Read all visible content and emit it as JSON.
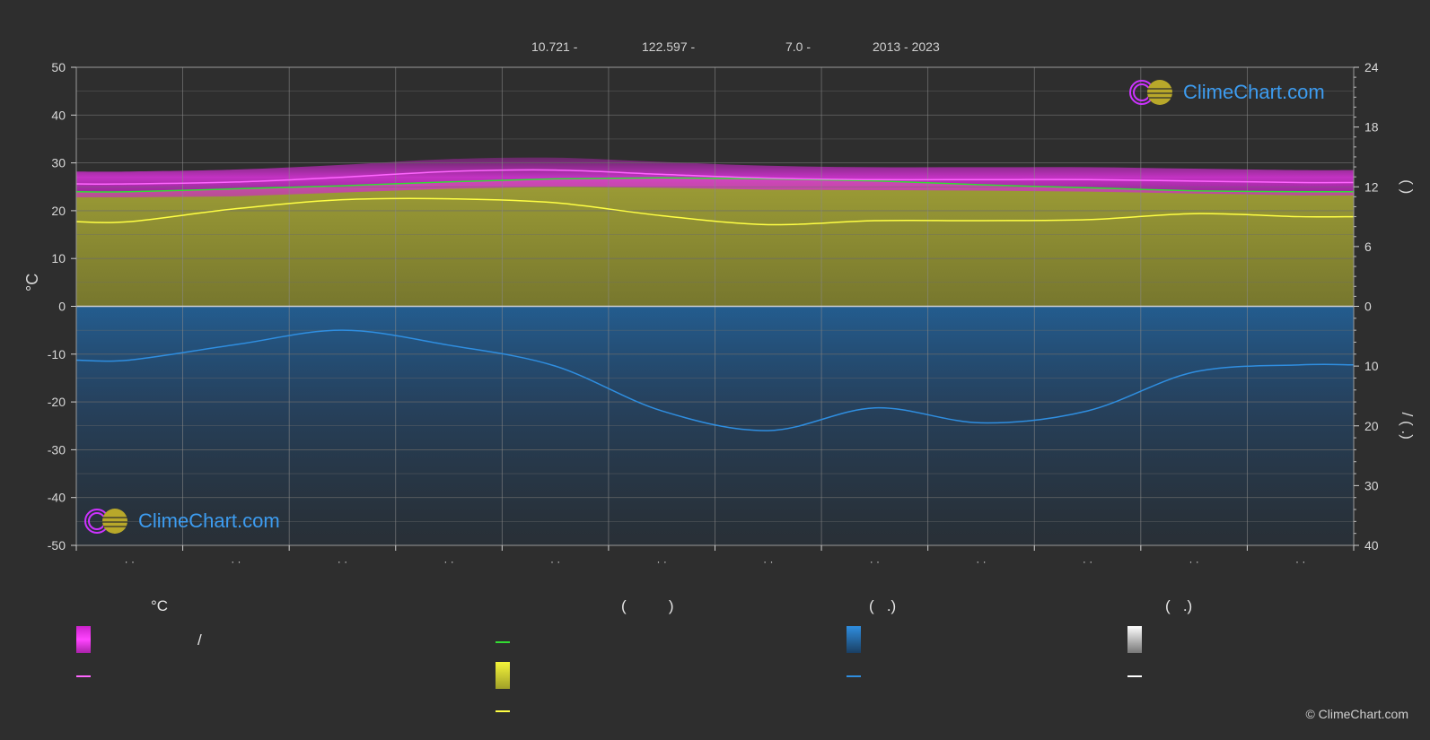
{
  "header": {
    "lat": "10.721 -",
    "lon": "122.597 -",
    "elev": "7.0 -",
    "years": "2013 - 2023"
  },
  "logo_text": "ClimeChart.com",
  "copyright": "© ClimeChart.com",
  "chart_data": {
    "type": "area",
    "title": "",
    "ylabel_left": "°C",
    "ylabel_right_top": "(      )",
    "ylabel_right_bottom": "/   (  .)",
    "y_left_ticks": [
      "50",
      "40",
      "30",
      "20",
      "10",
      "0",
      "-10",
      "-20",
      "-30",
      "-40",
      "-50"
    ],
    "y_right_top_ticks": [
      "24",
      "18",
      "12",
      "6",
      "0"
    ],
    "y_right_bottom_ticks": [
      "10",
      "20",
      "30",
      "40"
    ],
    "x_tick_labels": [
      "· ·",
      "· ·",
      "· ·",
      "· ·",
      "· ·",
      "· ·",
      "· ·",
      "· ·",
      "· ·",
      "· ·",
      "· ·",
      "· ·"
    ],
    "ylim_left": [
      -50,
      50
    ],
    "ylim_right_top": [
      0,
      24
    ],
    "ylim_right_bottom": [
      0,
      40
    ],
    "grid": true,
    "months": [
      1,
      2,
      3,
      4,
      5,
      6,
      7,
      8,
      9,
      10,
      11,
      12
    ],
    "series": [
      {
        "key": "max_temp",
        "color": "#ff66ff",
        "values": [
          25.6,
          26.0,
          27.0,
          28.2,
          28.5,
          27.6,
          26.8,
          26.5,
          26.5,
          26.5,
          26.2,
          25.9
        ]
      },
      {
        "key": "min_temp",
        "color": "#8a7f2c",
        "values": [
          22.8,
          23.0,
          23.8,
          24.6,
          25.0,
          24.8,
          24.4,
          24.3,
          24.2,
          24.0,
          23.6,
          23.2
        ]
      },
      {
        "key": "daylight_hours",
        "color": "#33dd33",
        "axis": "right_top",
        "values": [
          11.5,
          11.8,
          12.1,
          12.5,
          12.8,
          12.9,
          12.8,
          12.6,
          12.2,
          11.9,
          11.6,
          11.5
        ]
      },
      {
        "key": "sunshine_hours",
        "color": "#ffff44",
        "axis": "right_top",
        "values": [
          8.5,
          9.8,
          10.7,
          10.8,
          10.4,
          9.1,
          8.2,
          8.6,
          8.6,
          8.7,
          9.3,
          9.0
        ]
      },
      {
        "key": "precipitation_mm",
        "color": "#2f8ee0",
        "axis": "right_bottom",
        "values": [
          9.0,
          6.4,
          4.0,
          6.5,
          10.0,
          17.5,
          20.8,
          17.0,
          19.5,
          17.5,
          11.0,
          9.8
        ]
      }
    ]
  },
  "legend": {
    "col1": {
      "head": "°C",
      "row1": "/",
      "row2": ""
    },
    "col2": {
      "head": "(          )",
      "row1": "",
      "row2": "",
      "row3": ""
    },
    "col3": {
      "head": "(   .)",
      "row1": "",
      "row2": ""
    },
    "col4": {
      "head": "(   .)",
      "row1": "",
      "row2": ""
    }
  },
  "colors": {
    "background": "#2e2e2e",
    "max_band": "#cc22cc",
    "sun_band": "#8f8f32",
    "rain_band": "#1f5f96",
    "grid": "#6a6a6a"
  }
}
